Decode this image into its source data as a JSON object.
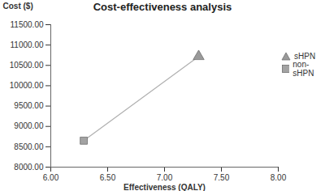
{
  "chart_data": {
    "type": "scatter",
    "title": "Cost-effectiveness analysis",
    "x_label": "Effectiveness (QALY)",
    "y_label": "Cost ($)",
    "line_style": "solid",
    "legend": "right",
    "xlim": [
      6.0,
      8.0
    ],
    "xticks": [
      {
        "value": 6.0,
        "label": "6.00"
      },
      {
        "value": 6.5,
        "label": "6.50"
      },
      {
        "value": 7.0,
        "label": "7.00"
      },
      {
        "value": 7.5,
        "label": "7.50"
      },
      {
        "value": 8.0,
        "label": "8.00"
      }
    ],
    "ylim": [
      8000,
      11500
    ],
    "yticks": [
      {
        "value": 8000,
        "label": "8000.00"
      },
      {
        "value": 8500,
        "label": "8500.00"
      },
      {
        "value": 9000,
        "label": "9000.00"
      },
      {
        "value": 9500,
        "label": "9500.00"
      },
      {
        "value": 10000,
        "label": "10000.00"
      },
      {
        "value": 10500,
        "label": "10500.00"
      },
      {
        "value": 11000,
        "label": "11000.00"
      },
      {
        "value": 11500,
        "label": "11500.00"
      }
    ],
    "grid": false,
    "series": [
      {
        "name": "sHPN",
        "color": "#9a9a9a",
        "marker": "triangle",
        "x": [
          7.3
        ],
        "values": [
          10720
        ]
      },
      {
        "name": "non-sHPN",
        "color": "#a3a3a3",
        "marker": "square",
        "x": [
          6.29
        ],
        "values": [
          8650
        ]
      }
    ]
  }
}
